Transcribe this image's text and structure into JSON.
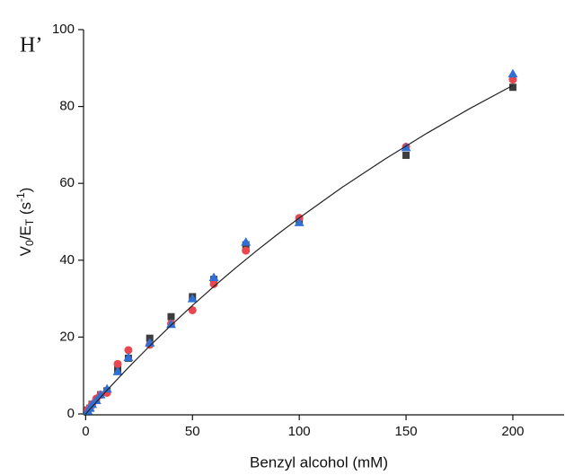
{
  "panel_label": "H’",
  "chart_data": {
    "type": "scatter",
    "xlabel": "Benzyl alcohol (mM)",
    "ylabel": [
      "V",
      "0",
      "/E",
      "T",
      " (s",
      "-1",
      ")"
    ],
    "xlim": [
      -1,
      224
    ],
    "ylim": [
      0,
      100
    ],
    "xticks": [
      0,
      50,
      100,
      150,
      200
    ],
    "yticks": [
      0,
      20,
      40,
      60,
      80,
      100
    ],
    "series": [
      {
        "marker": "square",
        "color": "#3d3d3d",
        "x": [
          1,
          2,
          3,
          5,
          7,
          10,
          15,
          20,
          30,
          40,
          50,
          60,
          75,
          100,
          150,
          200
        ],
        "values": [
          1,
          1.5,
          2.5,
          3.5,
          5,
          6,
          11.5,
          14.5,
          19.7,
          25.3,
          30.5,
          35,
          44,
          50.5,
          67.3,
          85
        ]
      },
      {
        "marker": "circle",
        "color": "#e8474f",
        "x": [
          1,
          2,
          3,
          5,
          7,
          10,
          15,
          20,
          30,
          40,
          50,
          60,
          75,
          100,
          150,
          200
        ],
        "values": [
          1,
          1.5,
          2.5,
          4,
          5,
          5.5,
          13,
          16.6,
          18,
          23.5,
          27,
          33.8,
          42.5,
          51,
          69.5,
          87
        ]
      },
      {
        "marker": "triangle",
        "color": "#2f6fd6",
        "x": [
          1,
          2,
          3,
          5,
          7,
          10,
          15,
          20,
          30,
          40,
          50,
          60,
          75,
          100,
          150,
          200
        ],
        "values": [
          0.8,
          1.5,
          2.5,
          3.5,
          5,
          6.5,
          11,
          14.7,
          18.5,
          23.3,
          30,
          35.5,
          44.7,
          49.8,
          69.3,
          88.5
        ]
      },
      {
        "marker": "line",
        "color": "#222222",
        "x": [
          0,
          10,
          20,
          30,
          40,
          50,
          60,
          70,
          80,
          90,
          100,
          120,
          140,
          160,
          180,
          200
        ],
        "values": [
          0,
          6.18,
          12.07,
          17.7,
          23.08,
          28.23,
          33.17,
          37.9,
          42.45,
          46.81,
          51.0,
          58.93,
          66.28,
          73.12,
          79.51,
          85.48
        ]
      }
    ]
  }
}
